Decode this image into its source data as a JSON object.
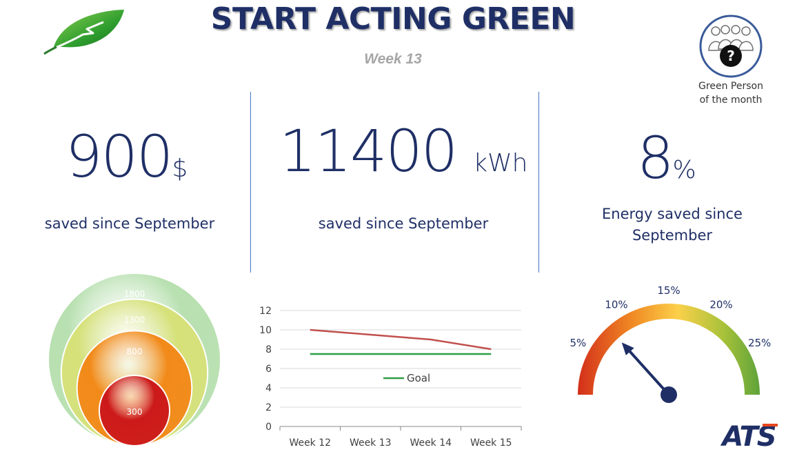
{
  "header": {
    "title": "START ACTING GREEN",
    "subtitle": "Week 13"
  },
  "green_person": {
    "line1": "Green Person",
    "line2": "of the month",
    "avatar_symbol": "?"
  },
  "kpis": [
    {
      "value": "900",
      "unit": "$",
      "label": "saved since September"
    },
    {
      "value": "11400",
      "unit": "kWh",
      "label": "saved since September"
    },
    {
      "value": "8",
      "unit": "%",
      "label_line1": "Energy saved since",
      "label_line2": "September"
    }
  ],
  "colors": {
    "navy": "#1f2f66",
    "accent_blue": "#4472c4",
    "line_red": "#c0504d",
    "line_green": "#2e9e44"
  },
  "chart_data": [
    {
      "type": "bubble-nested",
      "values": [
        1800,
        1300,
        800,
        300
      ],
      "colors": [
        "#b8e0b0",
        "#d6e17a",
        "#f28a1a",
        "#cc1a1a"
      ]
    },
    {
      "type": "line",
      "categories": [
        "Week 12",
        "Week 13",
        "Week 14",
        "Week 15"
      ],
      "ylim": [
        0,
        12
      ],
      "yticks": [
        0,
        2,
        4,
        6,
        8,
        10,
        12
      ],
      "series": [
        {
          "name": "",
          "values": [
            10,
            9.5,
            9,
            8
          ],
          "color": "#c0504d"
        },
        {
          "name": "Goal",
          "values": [
            7.5,
            7.5,
            7.5,
            7.5
          ],
          "color": "#2e9e44"
        }
      ],
      "legend": "center",
      "grid": true
    },
    {
      "type": "gauge",
      "tick_labels": [
        "5%",
        "10%",
        "15%",
        "20%",
        "25%"
      ],
      "range": [
        0,
        30
      ],
      "tick_values": [
        5,
        10,
        15,
        20,
        25
      ],
      "value": 8
    }
  ],
  "brand": {
    "logo_text": "ATS"
  }
}
